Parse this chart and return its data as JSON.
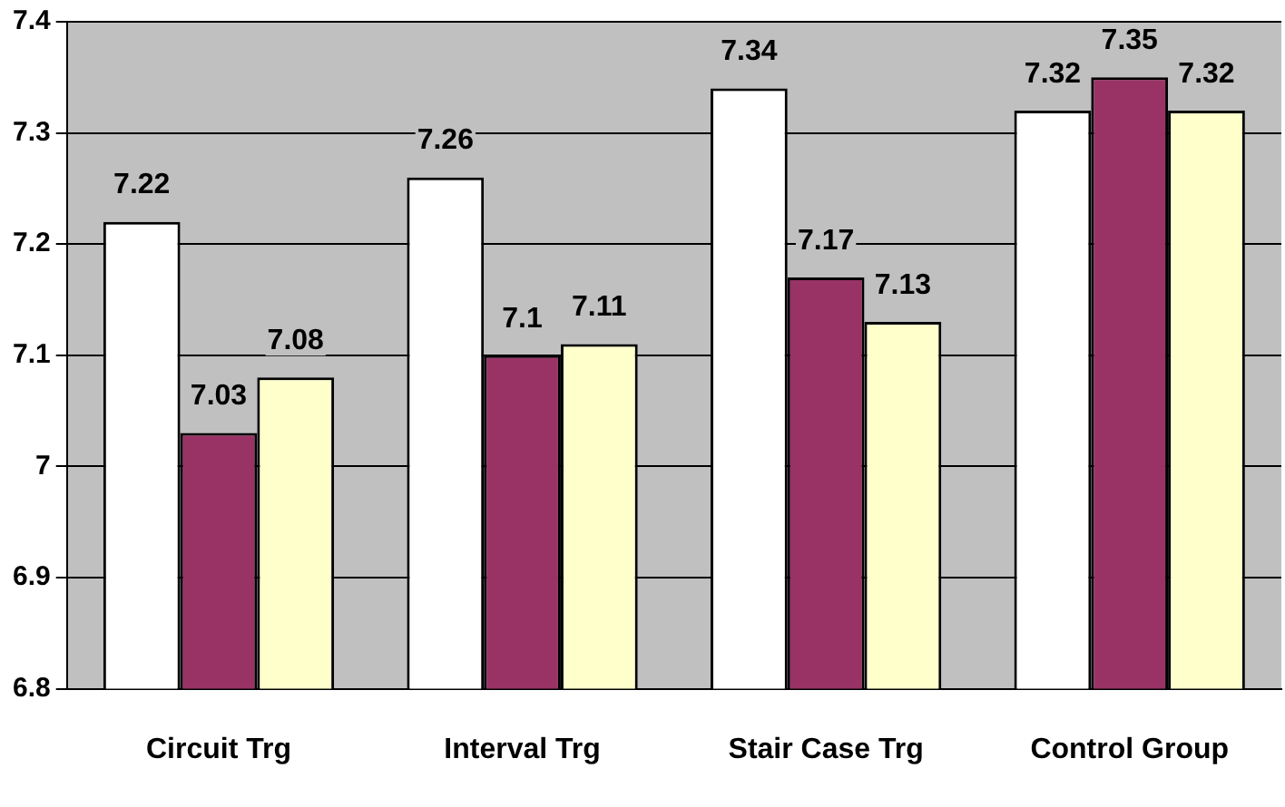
{
  "chart_data": {
    "type": "bar",
    "categories": [
      "Circuit Trg",
      "Interval Trg",
      "Stair Case Trg",
      "Control Group"
    ],
    "series": [
      {
        "color": "#ffffff",
        "values": [
          7.22,
          7.26,
          7.34,
          7.32
        ]
      },
      {
        "color": "#993366",
        "values": [
          7.03,
          7.1,
          7.17,
          7.35
        ]
      },
      {
        "color": "#ffffcc",
        "values": [
          7.08,
          7.11,
          7.13,
          7.32
        ]
      }
    ],
    "ylim": [
      6.8,
      7.4
    ],
    "yticks": [
      6.8,
      6.9,
      7,
      7.1,
      7.2,
      7.3,
      7.4
    ],
    "grid": "y",
    "legend": false,
    "data_labels": true
  }
}
